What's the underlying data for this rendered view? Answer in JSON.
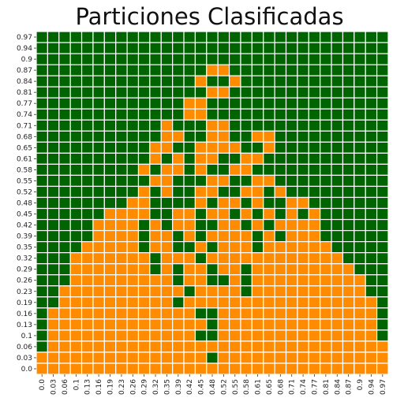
{
  "chart_data": {
    "type": "heatmap",
    "title": "Particiones Clasificadas",
    "xlabel": "",
    "ylabel": "",
    "x_ticks": [
      "0.0",
      "0.03",
      "0.06",
      "0.1",
      "0.13",
      "0.16",
      "0.19",
      "0.23",
      "0.26",
      "0.29",
      "0.32",
      "0.35",
      "0.39",
      "0.42",
      "0.45",
      "0.48",
      "0.52",
      "0.55",
      "0.58",
      "0.61",
      "0.65",
      "0.68",
      "0.71",
      "0.74",
      "0.77",
      "0.81",
      "0.84",
      "0.87",
      "0.9",
      "0.94",
      "0.97"
    ],
    "y_ticks_top_to_bottom": [
      "0.97",
      "0.94",
      "0.9",
      "0.87",
      "0.84",
      "0.81",
      "0.77",
      "0.74",
      "0.71",
      "0.68",
      "0.65",
      "0.61",
      "0.58",
      "0.55",
      "0.52",
      "0.48",
      "0.45",
      "0.42",
      "0.39",
      "0.35",
      "0.32",
      "0.29",
      "0.26",
      "0.23",
      "0.19",
      "0.16",
      "0.13",
      "0.1",
      "0.06",
      "0.03",
      "0.0"
    ],
    "colors": {
      "G": "#006400",
      "O": "#FF8C00",
      "grid": "#ffffff"
    },
    "rows_top_to_bottom": [
      "GGGGGGGGGGGGGGGGGGGGGGGGGGGGGGG",
      "GGGGGGGGGGGGGGGGGGGGGGGGGGGGGGG",
      "GGGGGGGGGGGGGGGGGGGGGGGGGGGGGGG",
      "GGGGGGGGGGGGGGGOOGGGGGGGGGGGGGG",
      "GGGGGGGGGGGGGGOGGOGGGGGGGGGGGGG",
      "GGGGGGGGGGGGGGGOOGGGGGGGGGGGGGG",
      "GGGGGGGGGGGGGOOGGGGGGGGGGGGGGGG",
      "GGGGGGGGGGGGGOOGGGGGGGGGGGGGGGG",
      "GGGGGGGGGGGOGGGOOGGGGGGGGGGGGGG",
      "GGGGGGGGGGGOOGGOOGGOOGGGGGGGGGG",
      "GGGGGGGGGGOOGGOOOOGGOGGGGGGGGGG",
      "GGGGGGGGGGOGOGOOGGOOGGGGGGGGGGG",
      "GGGGGGGGGOGOOGOGGOOGGGGGGGGGGGG",
      "GGGGGGGGGGOOGGGOOGGOOGGGGGGGGGG",
      "GGGGGGGGGOGOGGOOGGOOGOGGGGGGGGG",
      "GGGGGGGGOOGGGGOGOOGOGGOOGGGGGGG",
      "GGGGGGOOOOGGOOGOOGOGOGOGOGGGGGG",
      "GGGGGOOOOGOGOOGGOOGOGOOOOGGGGGG",
      "GGGGGOOOOGOOGOGOOOOGOGOOOGGGGGG",
      "GGGGOOOOOGOOGGOGOOOGOOOOOOGGGGG",
      "GGGOOOOOOOGOOOGOOOOOOOOOOOOGGGG",
      "GGGOOOOOOOGOGOOGOOGOOOOOOOOOGGG",
      "GGGOOOOOOOOOGOOGGOGOOOOOOOOOOGG",
      "GGOOOOOOOOOOOGOOOOGOOOOOOOOOOGG",
      "GGOOOOOOOOOOGOOOOOOOOOOOOOOOOOG",
      "GOOOOOOOOOOOOOGGOOOOOOOOOOOOOOG",
      "GOOOOOOOOOOOOOOGOOOOOOOOOOOOOOG",
      "GOOOOOOOOOOOOOGGOOOOOOOOOOOOOOG",
      "GOOOOOOOOOOOOOOOOOOOOOOOOOOOOOO",
      "OOOOOOOOOOOOOOOGOOOOOOOOOOOOOOO",
      "OOOOOOOOOOOOOOOOOOOOOOOOOOOOOOO"
    ]
  }
}
